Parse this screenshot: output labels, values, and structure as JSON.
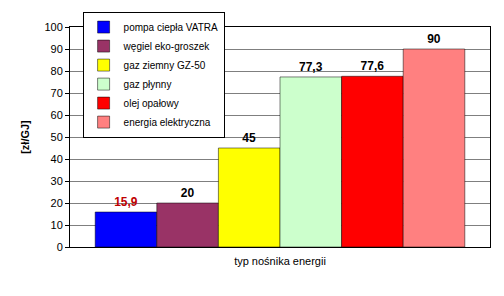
{
  "chart_data": {
    "type": "bar",
    "x_label": "typ nośnika energii",
    "y_label": "[zł/GJ]",
    "categories": [
      null
    ],
    "series": [
      {
        "name": "pompa ciepła VATRA",
        "color": "#0000ff",
        "values": [
          15.9
        ],
        "value_labels": [
          "15,9"
        ]
      },
      {
        "name": "węgiel eko-groszek",
        "color": "#993366",
        "values": [
          20
        ]
      },
      {
        "name": "gaz ziemny GZ-50",
        "color": "#ffff00",
        "values": [
          45
        ]
      },
      {
        "name": "gaz płynny",
        "color": "#ccffcc",
        "values": [
          77.3
        ],
        "value_labels": [
          "77,3"
        ]
      },
      {
        "name": "olej opałowy",
        "color": "#ff0000",
        "values": [
          77.6
        ],
        "value_labels": [
          "77,6"
        ]
      },
      {
        "name": "energia elektryczna",
        "color": "#ff8080",
        "values": [
          90
        ]
      }
    ],
    "ylim": [
      0,
      100
    ],
    "yticks": [
      0,
      10,
      20,
      30,
      40,
      50,
      60,
      70,
      80,
      90,
      100
    ],
    "grid": true,
    "legend": "top-left",
    "data_labels": true,
    "tick_labels": "y"
  }
}
